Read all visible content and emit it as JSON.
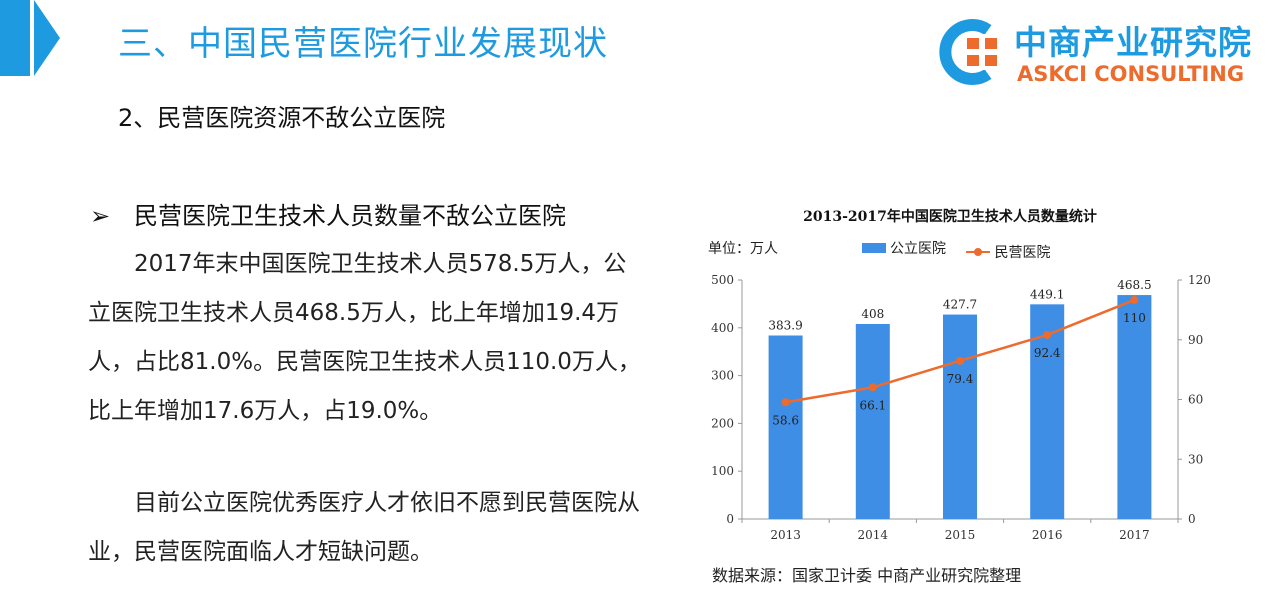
{
  "header": {
    "title": "三、中国民营医院行业发展现状",
    "section_heading": "2、民营医院资源不敌公立医院"
  },
  "logo": {
    "name_cn": "中商产业研究院",
    "name_en": "ASKCI CONSULTING"
  },
  "content": {
    "bullet_marker": "➢",
    "bullet_heading": "民营医院卫生技术人员数量不敌公立医院",
    "paragraph1": "2017年末中国医院卫生技术人员578.5万人，公立医院卫生技术人员468.5万人，比上年增加19.4万人，占比81.0%。民营医院卫生技术人员110.0万人，比上年增加17.6万人，占19.0%。",
    "paragraph2": "目前公立医院优秀医疗人才依旧不愿到民营医院从业，民营医院面临人才短缺问题。"
  },
  "chart_data": {
    "type": "bar",
    "title": "2013-2017年中国医院卫生技术人员数量统计",
    "unit_label": "单位：万人",
    "categories": [
      "2013",
      "2014",
      "2015",
      "2016",
      "2017"
    ],
    "series": [
      {
        "name": "公立医院",
        "type": "bar",
        "axis": "left",
        "values": [
          383.9,
          408,
          427.7,
          449.1,
          468.5
        ]
      },
      {
        "name": "民营医院",
        "type": "line",
        "axis": "right",
        "values": [
          58.6,
          66.1,
          79.4,
          92.4,
          110
        ]
      }
    ],
    "value_labels": {
      "bar": [
        "383.9",
        "408",
        "427.7",
        "449.1",
        "468.5"
      ],
      "line": [
        "58.6",
        "66.1",
        "79.4",
        "92.4",
        "110"
      ]
    },
    "y_left": {
      "range": [
        0,
        500
      ],
      "ticks": [
        "0",
        "100",
        "200",
        "300",
        "400",
        "500"
      ]
    },
    "y_right": {
      "range": [
        0,
        120
      ],
      "ticks": [
        "0",
        "30",
        "60",
        "90",
        "120"
      ]
    },
    "legend_position": "top",
    "grid": false,
    "colors": {
      "bar": "#3f8ee6",
      "line": "#ec6b2d"
    },
    "source": "数据来源：国家卫计委 中商产业研究院整理"
  }
}
